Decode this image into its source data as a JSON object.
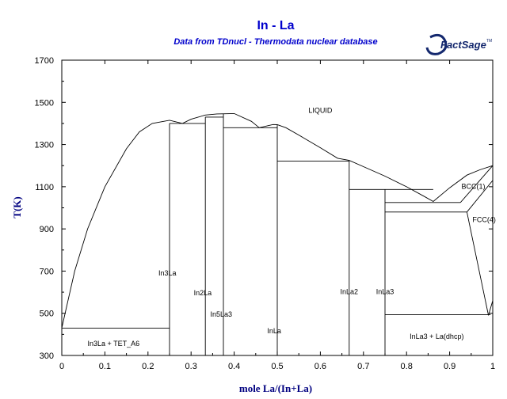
{
  "chart_data": {
    "type": "phase-diagram",
    "title": "In - La",
    "subtitle": "Data from TDnucl - Thermodata nuclear database",
    "logo": {
      "text": "FactSage",
      "tm": "TM"
    },
    "xlabel": "mole La/(In+La)",
    "ylabel": "T(K)",
    "xlim": [
      0,
      1
    ],
    "ylim": [
      300,
      1700
    ],
    "x_ticks": [
      0,
      0.1,
      0.2,
      0.3,
      0.4,
      0.5,
      0.6,
      0.7,
      0.8,
      0.9,
      1
    ],
    "x_tick_labels": [
      "0",
      "0.1",
      "0.2",
      "0.3",
      "0.4",
      "0.5",
      "0.6",
      "0.7",
      "0.8",
      "0.9",
      "1"
    ],
    "y_ticks": [
      300,
      500,
      700,
      900,
      1100,
      1300,
      1500,
      1700
    ],
    "y_tick_labels": [
      "300",
      "500",
      "700",
      "900",
      "1100",
      "1300",
      "1500",
      "1700"
    ],
    "colors": {
      "title": "#0000cc",
      "axis_label": "#000080",
      "logo": "#14286e",
      "lines": "#000000"
    },
    "liquidus": [
      [
        0.0,
        430
      ],
      [
        0.01,
        520
      ],
      [
        0.03,
        700
      ],
      [
        0.06,
        900
      ],
      [
        0.1,
        1100
      ],
      [
        0.15,
        1280
      ],
      [
        0.18,
        1360
      ],
      [
        0.21,
        1400
      ],
      [
        0.25,
        1415
      ],
      [
        0.28,
        1400
      ],
      [
        0.3,
        1420
      ],
      [
        0.333,
        1440
      ],
      [
        0.36,
        1445
      ],
      [
        0.4,
        1447
      ],
      [
        0.44,
        1410
      ],
      [
        0.458,
        1380
      ],
      [
        0.49,
        1395
      ],
      [
        0.5,
        1394
      ],
      [
        0.52,
        1380
      ],
      [
        0.55,
        1345
      ],
      [
        0.6,
        1285
      ],
      [
        0.64,
        1235
      ],
      [
        0.667,
        1225
      ],
      [
        0.7,
        1195
      ],
      [
        0.75,
        1150
      ],
      [
        0.8,
        1100
      ],
      [
        0.84,
        1055
      ],
      [
        0.862,
        1030
      ],
      [
        0.9,
        1095
      ],
      [
        0.94,
        1155
      ],
      [
        0.97,
        1180
      ],
      [
        1.0,
        1200
      ]
    ],
    "segments": [
      [
        [
          0.0,
          430
        ],
        [
          0.25,
          430
        ]
      ],
      [
        [
          0.0,
          430
        ],
        [
          0.0,
          300
        ]
      ],
      [
        [
          0.25,
          300
        ],
        [
          0.25,
          1400
        ]
      ],
      [
        [
          0.25,
          1400
        ],
        [
          0.333,
          1400
        ]
      ],
      [
        [
          0.333,
          300
        ],
        [
          0.333,
          1430
        ]
      ],
      [
        [
          0.333,
          1430
        ],
        [
          0.375,
          1430
        ]
      ],
      [
        [
          0.375,
          300
        ],
        [
          0.375,
          1445
        ]
      ],
      [
        [
          0.375,
          1380
        ],
        [
          0.5,
          1380
        ]
      ],
      [
        [
          0.5,
          300
        ],
        [
          0.5,
          1394
        ]
      ],
      [
        [
          0.5,
          1222
        ],
        [
          0.667,
          1222
        ]
      ],
      [
        [
          0.667,
          300
        ],
        [
          0.667,
          1225
        ]
      ],
      [
        [
          0.667,
          1087
        ],
        [
          0.862,
          1087
        ]
      ],
      [
        [
          0.75,
          300
        ],
        [
          0.75,
          1087
        ]
      ],
      [
        [
          0.75,
          1025
        ],
        [
          0.925,
          1025
        ]
      ],
      [
        [
          0.75,
          980
        ],
        [
          0.94,
          980
        ]
      ],
      [
        [
          0.925,
          1025
        ],
        [
          1.0,
          1200
        ]
      ],
      [
        [
          0.94,
          980
        ],
        [
          1.0,
          1130
        ]
      ],
      [
        [
          0.75,
          493
        ],
        [
          0.995,
          493
        ]
      ],
      [
        [
          0.94,
          980
        ],
        [
          0.99,
          490
        ]
      ],
      [
        [
          0.99,
          490
        ],
        [
          1.0,
          560
        ]
      ]
    ],
    "annotations": [
      {
        "text": "LIQUID",
        "x": 0.6,
        "y": 1450
      },
      {
        "text": "BCC(1)",
        "x": 0.955,
        "y": 1090
      },
      {
        "text": "FCC(4)",
        "x": 0.98,
        "y": 932
      },
      {
        "text": "In3La",
        "x": 0.245,
        "y": 680
      },
      {
        "text": "In2La",
        "x": 0.327,
        "y": 585
      },
      {
        "text": "In5La3",
        "x": 0.37,
        "y": 483
      },
      {
        "text": "InLa",
        "x": 0.493,
        "y": 405
      },
      {
        "text": "InLa2",
        "x": 0.667,
        "y": 590
      },
      {
        "text": "InLa3",
        "x": 0.75,
        "y": 590
      },
      {
        "text": "In3La + TET_A6",
        "x": 0.12,
        "y": 345
      },
      {
        "text": "InLa3 + La(dhcp)",
        "x": 0.87,
        "y": 378
      }
    ]
  }
}
